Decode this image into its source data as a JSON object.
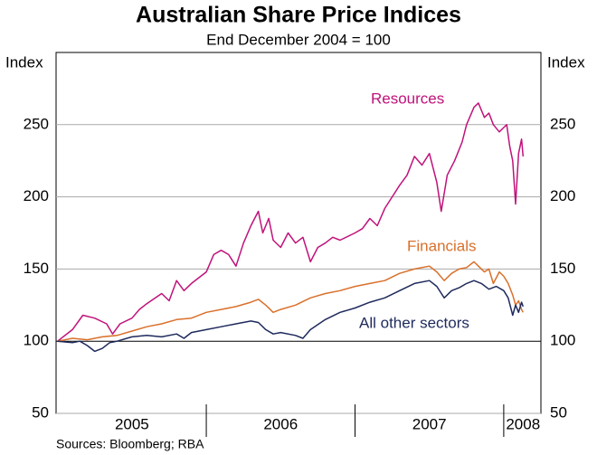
{
  "chart_data": {
    "type": "line",
    "title": "Australian Share Price Indices",
    "subtitle": "End December 2004 = 100",
    "y_label": "Index",
    "y2_label": "Index",
    "source": "Sources: Bloomberg; RBA",
    "xlim": [
      2004.99,
      2008.25
    ],
    "xticks": [
      {
        "value": 2005.5,
        "label": "2005"
      },
      {
        "value": 2006.5,
        "label": "2006"
      },
      {
        "value": 2007.5,
        "label": "2007"
      },
      {
        "value": 2008.13,
        "label": "2008"
      }
    ],
    "ylim": [
      50,
      300
    ],
    "yticks": [
      50,
      100,
      150,
      200,
      250
    ],
    "y2lim": [
      50,
      300
    ],
    "y2ticks": [
      50,
      100,
      150,
      200,
      250
    ],
    "grid": true,
    "series": [
      {
        "name": "Resources",
        "color": "#c0127a",
        "x": [
          2005.0,
          2005.1,
          2005.17,
          2005.25,
          2005.33,
          2005.37,
          2005.42,
          2005.5,
          2005.55,
          2005.6,
          2005.7,
          2005.75,
          2005.8,
          2005.85,
          2005.9,
          2006.0,
          2006.05,
          2006.1,
          2006.15,
          2006.2,
          2006.25,
          2006.3,
          2006.35,
          2006.38,
          2006.42,
          2006.45,
          2006.5,
          2006.55,
          2006.6,
          2006.65,
          2006.7,
          2006.75,
          2006.8,
          2006.85,
          2006.9,
          2007.0,
          2007.05,
          2007.1,
          2007.15,
          2007.2,
          2007.25,
          2007.3,
          2007.35,
          2007.4,
          2007.45,
          2007.5,
          2007.55,
          2007.58,
          2007.62,
          2007.67,
          2007.72,
          2007.75,
          2007.8,
          2007.83,
          2007.87,
          2007.9,
          2007.93,
          2007.97,
          2008.0,
          2008.02,
          2008.04,
          2008.06,
          2008.08,
          2008.1,
          2008.12,
          2008.13
        ],
        "values": [
          100,
          108,
          118,
          116,
          112,
          105,
          112,
          116,
          122,
          126,
          133,
          128,
          142,
          135,
          140,
          148,
          160,
          163,
          160,
          152,
          168,
          180,
          190,
          175,
          185,
          170,
          165,
          175,
          168,
          172,
          155,
          165,
          168,
          172,
          170,
          175,
          178,
          185,
          180,
          192,
          200,
          208,
          215,
          228,
          222,
          230,
          210,
          190,
          215,
          225,
          238,
          250,
          262,
          265,
          255,
          258,
          250,
          245,
          248,
          250,
          235,
          225,
          195,
          230,
          240,
          228
        ]
      },
      {
        "name": "Financials",
        "color": "#d9702b",
        "x": [
          2005.0,
          2005.1,
          2005.2,
          2005.3,
          2005.4,
          2005.5,
          2005.6,
          2005.7,
          2005.8,
          2005.9,
          2006.0,
          2006.1,
          2006.2,
          2006.3,
          2006.35,
          2006.4,
          2006.45,
          2006.5,
          2006.6,
          2006.7,
          2006.8,
          2006.9,
          2007.0,
          2007.1,
          2007.2,
          2007.3,
          2007.4,
          2007.5,
          2007.55,
          2007.6,
          2007.65,
          2007.7,
          2007.75,
          2007.8,
          2007.83,
          2007.87,
          2007.9,
          2007.93,
          2007.97,
          2008.0,
          2008.03,
          2008.06,
          2008.08,
          2008.1,
          2008.12,
          2008.13
        ],
        "values": [
          100,
          102,
          101,
          103,
          104,
          107,
          110,
          112,
          115,
          116,
          120,
          122,
          124,
          127,
          129,
          125,
          120,
          122,
          125,
          130,
          133,
          135,
          138,
          140,
          142,
          147,
          150,
          152,
          148,
          142,
          147,
          150,
          151,
          155,
          152,
          148,
          150,
          140,
          148,
          145,
          140,
          132,
          125,
          128,
          122,
          120
        ]
      },
      {
        "name": "All other sectors",
        "color": "#1f2a5c",
        "x": [
          2005.0,
          2005.1,
          2005.15,
          2005.2,
          2005.25,
          2005.3,
          2005.35,
          2005.4,
          2005.5,
          2005.6,
          2005.7,
          2005.8,
          2005.85,
          2005.9,
          2006.0,
          2006.1,
          2006.2,
          2006.3,
          2006.35,
          2006.4,
          2006.45,
          2006.5,
          2006.6,
          2006.65,
          2006.7,
          2006.8,
          2006.9,
          2007.0,
          2007.1,
          2007.2,
          2007.3,
          2007.4,
          2007.5,
          2007.55,
          2007.6,
          2007.65,
          2007.7,
          2007.75,
          2007.8,
          2007.85,
          2007.9,
          2007.95,
          2008.0,
          2008.03,
          2008.06,
          2008.08,
          2008.1,
          2008.12,
          2008.13
        ],
        "values": [
          100,
          99,
          100,
          97,
          93,
          95,
          99,
          100,
          103,
          104,
          103,
          105,
          102,
          106,
          108,
          110,
          112,
          114,
          113,
          108,
          105,
          106,
          104,
          102,
          108,
          115,
          120,
          123,
          127,
          130,
          135,
          140,
          142,
          138,
          130,
          135,
          137,
          140,
          142,
          140,
          136,
          138,
          135,
          130,
          118,
          125,
          120,
          127,
          124
        ]
      }
    ]
  }
}
